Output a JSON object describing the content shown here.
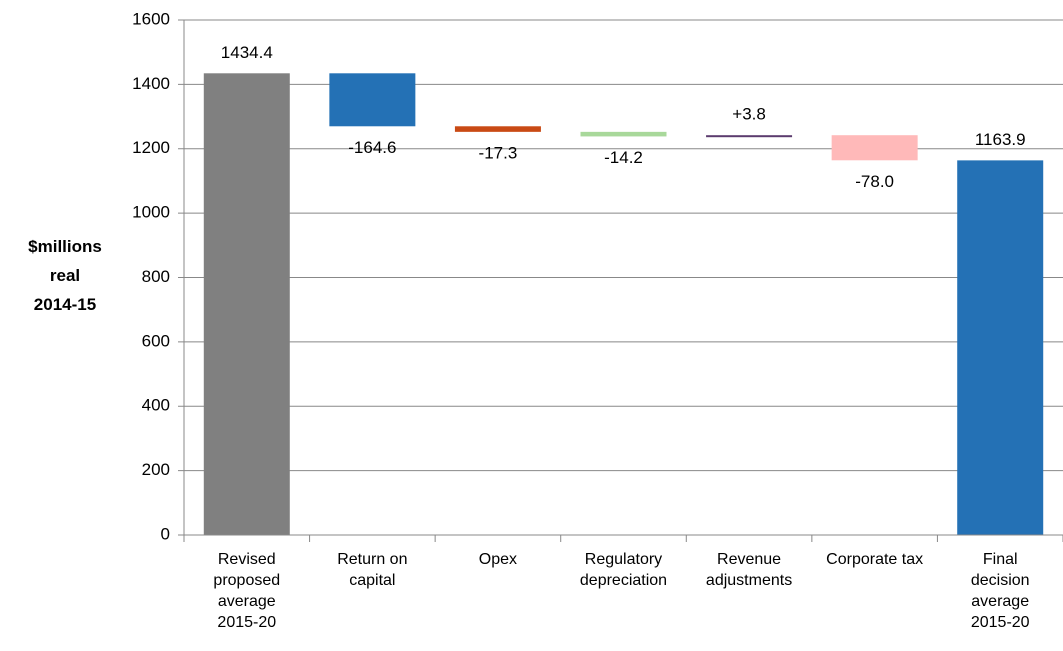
{
  "chart_data": {
    "type": "waterfall",
    "y_label": "$millions\nreal\n2014-15",
    "categories": [
      "Revised\nproposed\naverage\n2015-20",
      "Return on\ncapital",
      "Opex",
      "Regulatory\ndepreciation",
      "Revenue\nadjustments",
      "Corporate tax",
      "Final\ndecision\naverage\n2015-20"
    ],
    "values": [
      1434.4,
      -164.6,
      -17.3,
      -14.2,
      3.8,
      -78.0,
      1163.9
    ],
    "value_labels": [
      "1434.4",
      "-164.6",
      "-17.3",
      "-14.2",
      "+3.8",
      "-78.0",
      "1163.9"
    ],
    "colors": [
      "#808080",
      "#2471b5",
      "#c94a14",
      "#a8d89a",
      "#5b3b6e",
      "#ffb9b9",
      "#2471b5"
    ],
    "ylim": [
      0,
      1600
    ],
    "yticks": [
      0,
      200,
      400,
      600,
      800,
      1000,
      1200,
      1400,
      1600
    ],
    "grid": true
  }
}
